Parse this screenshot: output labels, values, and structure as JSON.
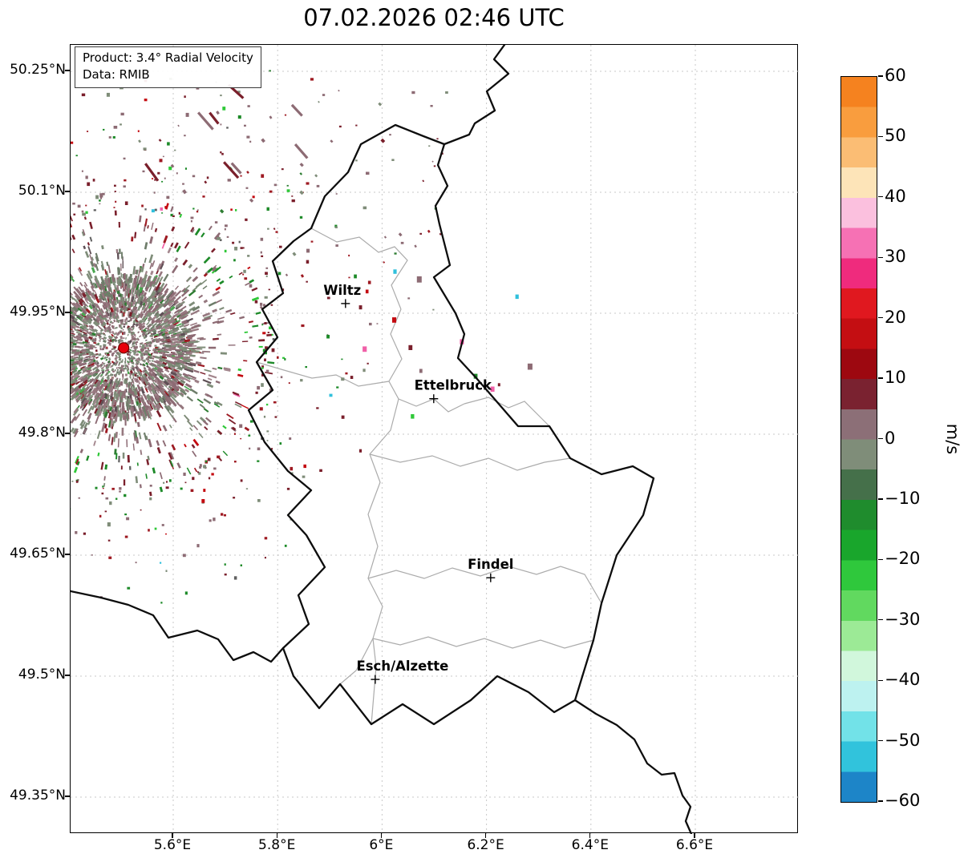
{
  "title": "07.02.2026 02:46 UTC",
  "info_box": {
    "product": "Product: 3.4° Radial Velocity",
    "data": "Data: RMIB"
  },
  "axes": {
    "lat_ticks": [
      {
        "label": "50.25°N",
        "lat": 50.25
      },
      {
        "label": "50.1°N",
        "lat": 50.1
      },
      {
        "label": "49.95°N",
        "lat": 49.95
      },
      {
        "label": "49.8°N",
        "lat": 49.8
      },
      {
        "label": "49.65°N",
        "lat": 49.65
      },
      {
        "label": "49.5°N",
        "lat": 49.5
      },
      {
        "label": "49.35°N",
        "lat": 49.35
      }
    ],
    "lon_ticks": [
      {
        "label": "5.6°E",
        "lon": 5.6
      },
      {
        "label": "5.8°E",
        "lon": 5.8
      },
      {
        "label": "6°E",
        "lon": 6.0
      },
      {
        "label": "6.2°E",
        "lon": 6.2
      },
      {
        "label": "6.4°E",
        "lon": 6.4
      },
      {
        "label": "6.6°E",
        "lon": 6.6
      }
    ]
  },
  "cities": [
    {
      "name": "Wiltz",
      "lon": 5.93,
      "lat": 49.962,
      "label_dx": -4
    },
    {
      "name": "Ettelbruck",
      "lon": 6.099,
      "lat": 49.844,
      "label_dx": 24
    },
    {
      "name": "Findel",
      "lon": 6.208,
      "lat": 49.622,
      "label_dx": 0
    },
    {
      "name": "Esch/Alzette",
      "lon": 5.987,
      "lat": 49.496,
      "label_dx": 34
    }
  ],
  "colorbar": {
    "unit": "m/s",
    "min": -60,
    "max": 60,
    "tick_labels": [
      "60",
      "50",
      "40",
      "30",
      "20",
      "10",
      "0",
      "−10",
      "−20",
      "−30",
      "−40",
      "−50",
      "−60"
    ],
    "tick_values": [
      60,
      50,
      40,
      30,
      20,
      10,
      0,
      -10,
      -20,
      -30,
      -40,
      -50,
      -60
    ],
    "band_colors_top_to_bottom": [
      "#f5821f",
      "#f99d3e",
      "#fbbd74",
      "#fde4b8",
      "#fbc0de",
      "#f671b4",
      "#ef2b7d",
      "#e0181f",
      "#c40e12",
      "#9d0810",
      "#7a2230",
      "#8c6f77",
      "#7f8d79",
      "#45704a",
      "#1f8c2d",
      "#19a62c",
      "#2fc83c",
      "#61d95f",
      "#9cea96",
      "#d1f7dc",
      "#bdf2f0",
      "#72e2e8",
      "#31c3dc",
      "#1d85c8"
    ]
  },
  "radar": {
    "site": {
      "lon": 5.505,
      "lat": 49.907
    },
    "site_marker_color": "#e8000b",
    "seed": 1337,
    "inner_palette": [
      [
        "#8d6b74",
        30
      ],
      [
        "#96787f",
        13
      ],
      [
        "#7f8d79",
        26
      ],
      [
        "#6e7d6a",
        10
      ],
      [
        "#a3868d",
        6
      ],
      [
        "#5e4f55",
        4
      ],
      [
        "#7a1f2b",
        4
      ],
      [
        "#9e1a22",
        2
      ],
      [
        "#2e7d32",
        3
      ],
      [
        "#4aa850",
        2
      ]
    ],
    "outer_palette": [
      [
        "#7a1f2b",
        22
      ],
      [
        "#9e1a22",
        13
      ],
      [
        "#c40a10",
        6
      ],
      [
        "#1d8a28",
        15
      ],
      [
        "#2fc838",
        8
      ],
      [
        "#8d6b74",
        20
      ],
      [
        "#7f8d79",
        10
      ],
      [
        "#f060a8",
        2
      ],
      [
        "#30c0dc",
        1
      ],
      [
        "#606060",
        3
      ]
    ],
    "field_palette": [
      [
        "#8d6b74",
        45
      ],
      [
        "#7a1f2b",
        18
      ],
      [
        "#7f8d79",
        20
      ],
      [
        "#2e7d32",
        5
      ],
      [
        "#9e1a22",
        12
      ]
    ],
    "far_palette": [
      [
        "#f060a8",
        18
      ],
      [
        "#c40a10",
        14
      ],
      [
        "#7a1f2b",
        16
      ],
      [
        "#1d8a28",
        20
      ],
      [
        "#2fc838",
        10
      ],
      [
        "#30c0dc",
        8
      ],
      [
        "#8d6b74",
        14
      ]
    ]
  },
  "chart_data": {
    "type": "heatmap",
    "title": "07.02.2026 02:46 UTC",
    "product": "3.4° Radial Velocity",
    "data_source": "RMIB",
    "x_ticks": [
      "5.6°E",
      "5.8°E",
      "6°E",
      "6.2°E",
      "6.4°E",
      "6.6°E"
    ],
    "y_ticks": [
      "50.25°N",
      "50.1°N",
      "49.95°N",
      "49.8°N",
      "49.65°N",
      "49.5°N",
      "49.35°N"
    ],
    "xlim_lon": [
      5.403,
      6.798
    ],
    "ylim_lat": [
      49.304,
      50.283
    ],
    "grid": "dashed",
    "colorbar": {
      "label": "m/s",
      "min": -60,
      "max": 60,
      "ticks": [
        60,
        50,
        40,
        30,
        20,
        10,
        0,
        -10,
        -20,
        -30,
        -40,
        -50,
        -60
      ]
    },
    "radar_site": {
      "lon": 5.505,
      "lat": 49.907
    },
    "city_annotations": [
      {
        "name": "Wiltz",
        "lon": 5.93,
        "lat": 49.962
      },
      {
        "name": "Ettelbruck",
        "lon": 6.099,
        "lat": 49.844
      },
      {
        "name": "Findel",
        "lon": 6.208,
        "lat": 49.622
      },
      {
        "name": "Esch/Alzette",
        "lon": 5.987,
        "lat": 49.496
      }
    ],
    "description": "Doppler radial velocity echoes (speckle) centered on the radar site west of Luxembourg; dominant values between -10 and +10 m/s with scattered stronger inbound/outbound echoes."
  }
}
